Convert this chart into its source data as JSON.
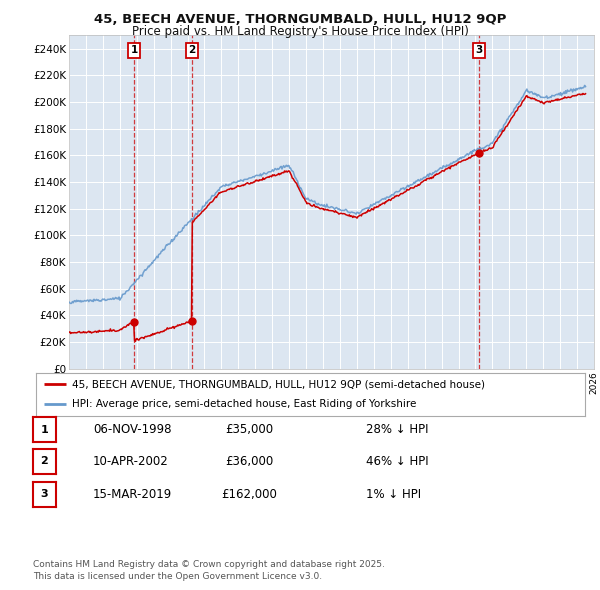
{
  "title_line1": "45, BEECH AVENUE, THORNGUMBALD, HULL, HU12 9QP",
  "title_line2": "Price paid vs. HM Land Registry's House Price Index (HPI)",
  "background_color": "#ffffff",
  "plot_bg_color": "#dce6f1",
  "grid_color": "#ffffff",
  "sale_color": "#cc0000",
  "hpi_color": "#6699cc",
  "transactions": [
    {
      "num": 1,
      "date_label": "06-NOV-1998",
      "year": 1998.85,
      "price": 35000,
      "pct": "28% ↓ HPI"
    },
    {
      "num": 2,
      "date_label": "10-APR-2002",
      "year": 2002.27,
      "price": 36000,
      "pct": "46% ↓ HPI"
    },
    {
      "num": 3,
      "date_label": "15-MAR-2019",
      "year": 2019.2,
      "price": 162000,
      "pct": "1% ↓ HPI"
    }
  ],
  "legend_sale": "45, BEECH AVENUE, THORNGUMBALD, HULL, HU12 9QP (semi-detached house)",
  "legend_hpi": "HPI: Average price, semi-detached house, East Riding of Yorkshire",
  "footnote": "Contains HM Land Registry data © Crown copyright and database right 2025.\nThis data is licensed under the Open Government Licence v3.0.",
  "ylim": [
    0,
    250000
  ],
  "ytick_step": 20000,
  "xmin": 1995,
  "xmax": 2026
}
